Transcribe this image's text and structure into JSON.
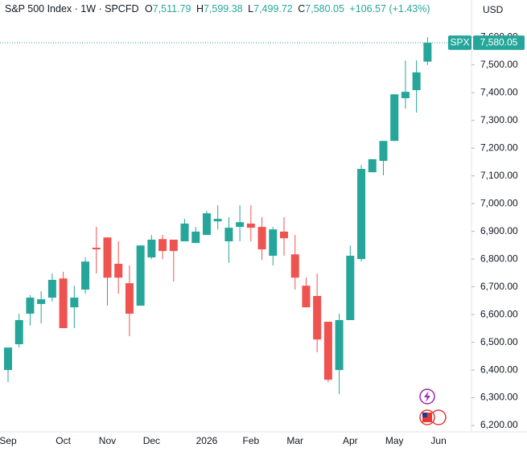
{
  "chart_data": {
    "type": "candlestick",
    "title": "S&P 500 Index · 1W · SPCFD",
    "ohlc_legend": {
      "o_label": "O",
      "o": "7,511.79",
      "h_label": "H",
      "h": "7,599.38",
      "l_label": "L",
      "l": "7,499.72",
      "c_label": "C",
      "c": "7,580.05",
      "change": "+106.57 (+1.43%)"
    },
    "currency": "USD",
    "symbol": "SPX",
    "last_price_label": "7,580.05",
    "up_color": "#26a69a",
    "down_color": "#ef5350",
    "categories": [
      "Sep",
      null,
      null,
      null,
      null,
      "Oct",
      null,
      null,
      null,
      "Nov",
      null,
      null,
      null,
      "Dec",
      null,
      null,
      null,
      null,
      "2026",
      null,
      null,
      null,
      "Feb",
      null,
      null,
      null,
      "Mar",
      null,
      null,
      null,
      null,
      "Apr",
      null,
      null,
      null,
      "May",
      null,
      null,
      null,
      "Jun"
    ],
    "open": [
      6400,
      6493,
      6603,
      6638,
      6661,
      6730,
      6626,
      6690,
      6841,
      6878,
      6783,
      6713,
      6632,
      6806,
      6872,
      6870,
      6864,
      6858,
      6887,
      6936,
      6864,
      6916,
      6928,
      6916,
      6812,
      6899,
      6817,
      6704,
      6667,
      6574,
      6400,
      6580,
      6800,
      7113,
      7154,
      7226,
      7380,
      7409,
      7511.79,
      null
    ],
    "high": [
      6481,
      6603,
      6670,
      6684,
      6748,
      6754,
      6704,
      6806,
      6916,
      6878,
      6864,
      6777,
      6849,
      6887,
      6887,
      6870,
      6945,
      6916,
      6974,
      6994,
      6951,
      6994,
      6994,
      6951,
      6916,
      6951,
      6887,
      6733,
      6748,
      6574,
      6603,
      6849,
      7139,
      7160,
      7226,
      7394,
      7516,
      7516,
      7599.38,
      null
    ],
    "low": [
      6356,
      6481,
      6560,
      6568,
      6647,
      6551,
      6551,
      6675,
      6748,
      6632,
      6675,
      6522,
      6632,
      6800,
      6800,
      6719,
      6864,
      6858,
      6887,
      6907,
      6786,
      6864,
      6864,
      6797,
      6777,
      6812,
      6690,
      6626,
      6464,
      6356,
      6313,
      6580,
      6791,
      7113,
      7102,
      7226,
      7342,
      7328,
      7499.72,
      null
    ],
    "close": [
      6481,
      6580,
      6661,
      6655,
      6725,
      6551,
      6661,
      6791,
      6835,
      6733,
      6733,
      6603,
      6849,
      6870,
      6829,
      6829,
      6928,
      6899,
      6965,
      6945,
      6913,
      6933,
      6913,
      6835,
      6907,
      6875,
      6733,
      6626,
      6510,
      6365,
      6580,
      6812,
      7125,
      7160,
      7226,
      7394,
      7403,
      7473,
      7580.05,
      null
    ],
    "ylim": [
      6177,
      7734
    ],
    "yticks": [
      {
        "value": 6200,
        "label": "6,200.00"
      },
      {
        "value": 6300,
        "label": "6,300.00"
      },
      {
        "value": 6400,
        "label": "6,400.00"
      },
      {
        "value": 6500,
        "label": "6,500.00"
      },
      {
        "value": 6600,
        "label": "6,600.00"
      },
      {
        "value": 6700,
        "label": "6,700.00"
      },
      {
        "value": 6800,
        "label": "6,800.00"
      },
      {
        "value": 6900,
        "label": "6,900.00"
      },
      {
        "value": 7000,
        "label": "7,000.00"
      },
      {
        "value": 7100,
        "label": "7,100.00"
      },
      {
        "value": 7200,
        "label": "7,200.00"
      },
      {
        "value": 7300,
        "label": "7,300.00"
      },
      {
        "value": 7400,
        "label": "7,400.00"
      },
      {
        "value": 7500,
        "label": "7,500.00"
      },
      {
        "value": 7600,
        "label": "7,600.00"
      }
    ]
  }
}
